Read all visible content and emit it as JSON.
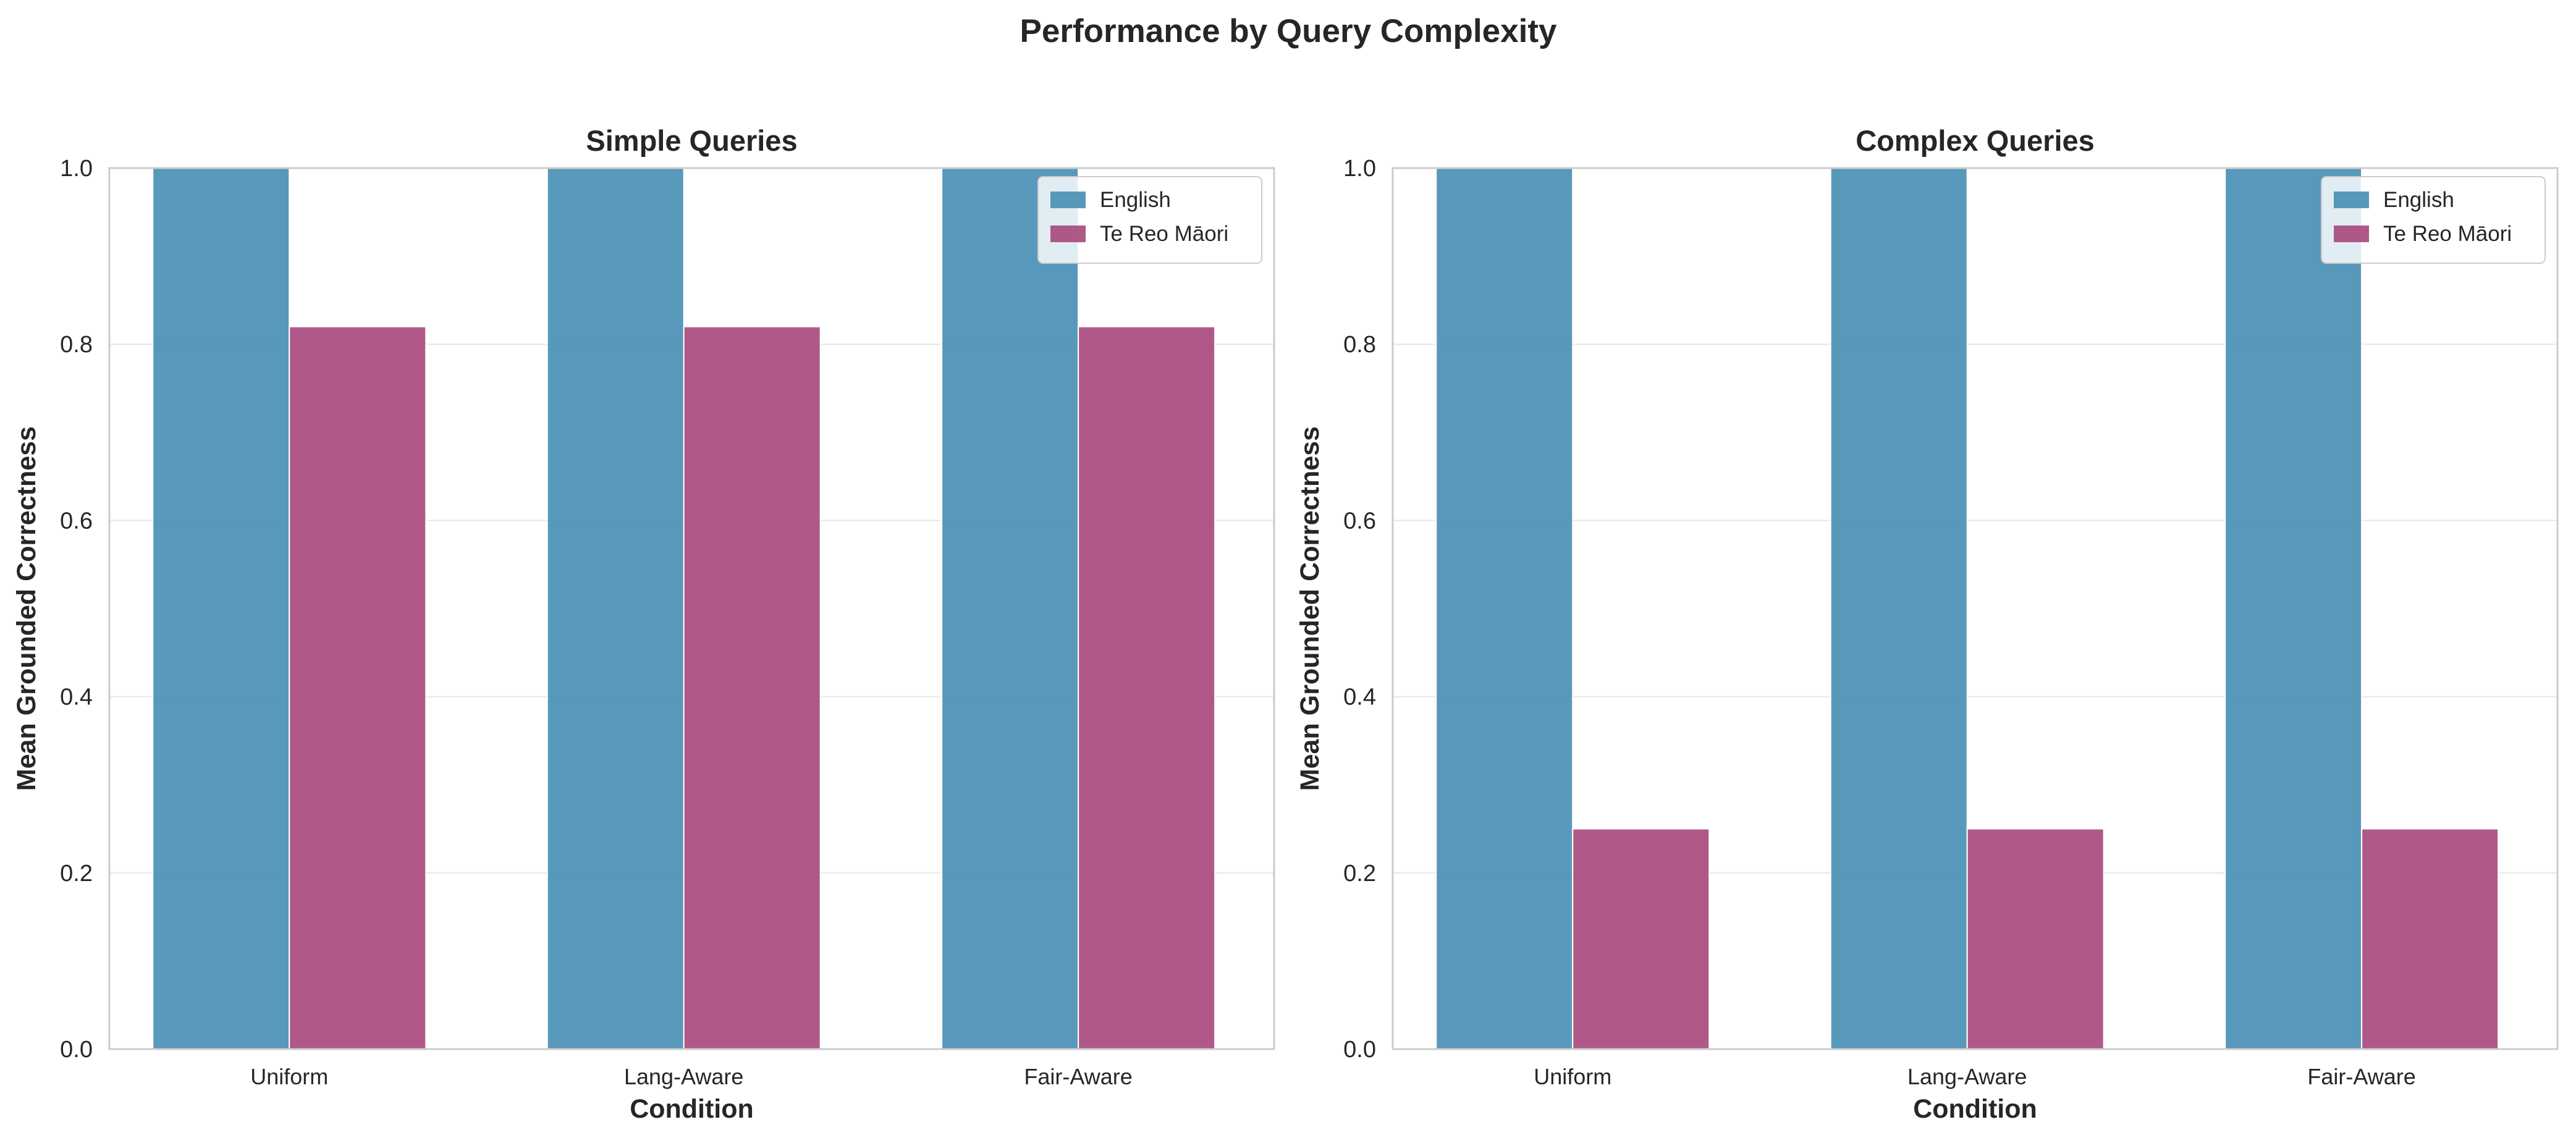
{
  "figure_title": "Performance by Query Complexity",
  "colors": {
    "English": "#4a90b5",
    "Te Reo Māori": "#a94b7e",
    "grid": "#e6e6e6",
    "spine": "#cccccc"
  },
  "chart_data": [
    {
      "type": "bar",
      "title": "Simple Queries",
      "xlabel": "Condition",
      "ylabel": "Mean Grounded Correctness",
      "categories": [
        "Uniform",
        "Lang-Aware",
        "Fair-Aware"
      ],
      "series": [
        {
          "name": "English",
          "values": [
            1.0,
            1.0,
            1.0
          ]
        },
        {
          "name": "Te Reo Māori",
          "values": [
            0.82,
            0.82,
            0.82
          ]
        }
      ],
      "ylim": [
        0,
        1.0
      ],
      "yticks": [
        "0.0",
        "0.2",
        "0.4",
        "0.6",
        "0.8",
        "1.0"
      ],
      "grid": true,
      "legend_position": "upper right"
    },
    {
      "type": "bar",
      "title": "Complex Queries",
      "xlabel": "Condition",
      "ylabel": "Mean Grounded Correctness",
      "categories": [
        "Uniform",
        "Lang-Aware",
        "Fair-Aware"
      ],
      "series": [
        {
          "name": "English",
          "values": [
            1.0,
            1.0,
            1.0
          ]
        },
        {
          "name": "Te Reo Māori",
          "values": [
            0.25,
            0.25,
            0.25
          ]
        }
      ],
      "ylim": [
        0,
        1.0
      ],
      "yticks": [
        "0.0",
        "0.2",
        "0.4",
        "0.6",
        "0.8",
        "1.0"
      ],
      "grid": true,
      "legend_position": "upper right"
    }
  ]
}
